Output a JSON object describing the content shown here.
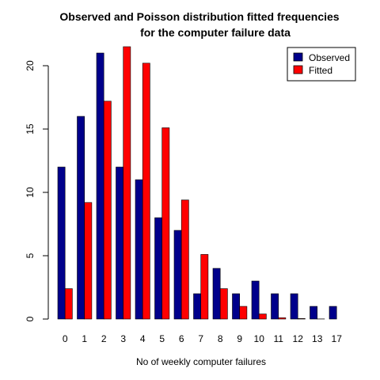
{
  "chart_data": {
    "type": "bar",
    "title_lines": [
      "Observed and Poisson distribution fitted frequencies",
      "for the computer failure data"
    ],
    "xlabel": "No of weekly computer failures",
    "ylabel": "",
    "categories": [
      "0",
      "1",
      "2",
      "3",
      "4",
      "5",
      "6",
      "7",
      "8",
      "9",
      "10",
      "11",
      "12",
      "13",
      "17"
    ],
    "series": [
      {
        "name": "Observed",
        "color": "#00008B",
        "values": [
          12,
          16,
          21,
          12,
          11,
          8,
          7,
          2,
          4,
          2,
          3,
          2,
          2,
          1,
          1
        ]
      },
      {
        "name": "Fitted",
        "color": "#FF0000",
        "values": [
          2.4,
          9.2,
          17.2,
          21.5,
          20.2,
          15.1,
          9.4,
          5.1,
          2.4,
          1.0,
          0.4,
          0.1,
          0.04,
          0.01,
          0.0
        ]
      }
    ],
    "ylim": [
      0,
      22
    ],
    "yticks": [
      0,
      5,
      10,
      15,
      20
    ],
    "grid": false,
    "legend_position": "top-right"
  }
}
